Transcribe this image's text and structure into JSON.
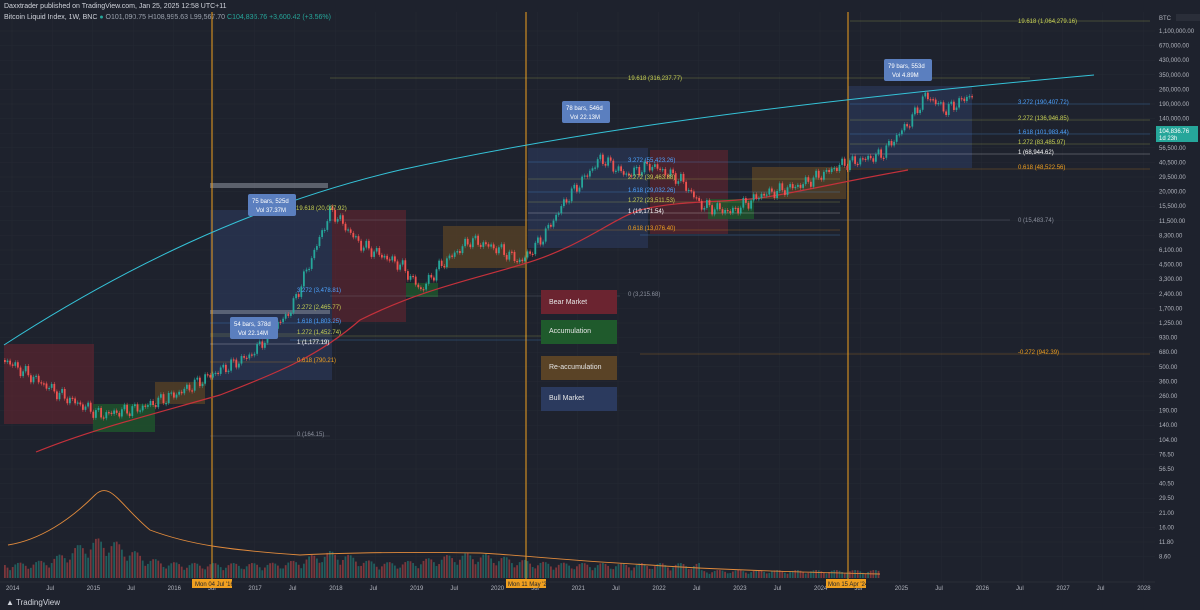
{
  "header": {
    "publisher": "Daxxtrader published on TradingView.com, Jan 25, 2025 12:58 UTC+11",
    "symbol": "Bitcoin Liquid Index, 1W, BNC",
    "o": "O101,090.75",
    "h": "H108,995.63",
    "l": "L99,567.70",
    "c": "C104,836.76",
    "chg": "+3,600.42 (+3.56%)"
  },
  "brand": "TradingView",
  "colors": {
    "bg": "#1e222d",
    "bear": "#6b2430",
    "accum": "#1f5a2c",
    "reaccum": "#5a4326",
    "bull": "#2b3a5e",
    "up": "#26a69a",
    "down": "#ef5350",
    "curve": "#35c3d8",
    "ma": "#c4313b",
    "vline": "#f0a020"
  },
  "price_axis": {
    "unit_label": "BTC",
    "ticks": [
      "1,100,000.00",
      "670,000.00",
      "430,000.00",
      "350,000.00",
      "260,000.00",
      "190,000.00",
      "140,000.00",
      "76,500.00",
      "56,500.00",
      "40,500.00",
      "29,500.00",
      "20,000.00",
      "15,500.00",
      "11,500.00",
      "8,300.00",
      "6,100.00",
      "4,500.00",
      "3,300.00",
      "2,400.00",
      "1,700.00",
      "1,250.00",
      "930.00",
      "680.00",
      "500.00",
      "360.00",
      "260.00",
      "190.00",
      "140.00",
      "104.00",
      "76.50",
      "56.50",
      "40.50",
      "29.50",
      "21.00",
      "16.00",
      "11.80",
      "8.60"
    ],
    "last_price": "104,836.76",
    "countdown": "1d 23h"
  },
  "time_axis": [
    "2014",
    "Jul",
    "2015",
    "Jul",
    "2016",
    "Jul",
    "2017",
    "Jul",
    "2018",
    "Jul",
    "2019",
    "Jul",
    "2020",
    "Jul",
    "2021",
    "Jul",
    "2022",
    "Jul",
    "2023",
    "Jul",
    "2024",
    "Jul",
    "2025",
    "Jul",
    "2026",
    "Jul",
    "2027",
    "Jul",
    "2028"
  ],
  "vline_labels": [
    "Mon 04 Jul '16",
    "Mon 11 May '20",
    "Mon 15 Apr '24"
  ],
  "callouts": [
    {
      "l1": "54 bars, 378d",
      "l2": "Vol 22.14M"
    },
    {
      "l1": "75 bars, 525d",
      "l2": "Vol 37.37M"
    },
    {
      "l1": "78 bars, 546d",
      "l2": "Vol 22.13M"
    },
    {
      "l1": "79 bars, 553d",
      "l2": "Vol 4.89M"
    }
  ],
  "fib_sets": [
    {
      "levels": [
        {
          "t": "1.618 (1,803.25)",
          "c": "#4da3ff"
        },
        {
          "t": "1.272 (1,452.74)",
          "c": "#c8d255"
        },
        {
          "t": "1 (1,177.19)",
          "c": "#ffffff"
        },
        {
          "t": "0.618 (790.21)",
          "c": "#f0a020"
        },
        {
          "t": "0 (164.15)",
          "c": "#8a8f9c"
        }
      ]
    },
    {
      "levels": [
        {
          "t": "19.618 (20,027.92)",
          "c": "#c8d255"
        },
        {
          "t": "3.272 (3,478.81)",
          "c": "#4da3ff"
        },
        {
          "t": "2.272 (2,465.77)",
          "c": "#c8d255"
        },
        {
          "t": "0 (3,215.68)",
          "c": "#8a8f9c"
        }
      ]
    },
    {
      "levels": [
        {
          "t": "19.618 (316,237.77)",
          "c": "#c8d255"
        },
        {
          "t": "3.272 (55,423.26)",
          "c": "#4da3ff"
        },
        {
          "t": "2.272 (39,463.88)",
          "c": "#c8d255"
        },
        {
          "t": "1.618 (29,032.26)",
          "c": "#4da3ff"
        },
        {
          "t": "1.272 (23,511.53)",
          "c": "#c8d255"
        },
        {
          "t": "1 (19,171.54)",
          "c": "#ffffff"
        },
        {
          "t": "0.618 (13,076.40)",
          "c": "#f0a020"
        },
        {
          "t": "0 (15,483.74)",
          "c": "#8a8f9c"
        }
      ]
    },
    {
      "levels": [
        {
          "t": "19.618 (1,064,279.16)",
          "c": "#c8d255"
        },
        {
          "t": "3.272 (190,407.72)",
          "c": "#4da3ff"
        },
        {
          "t": "2.272 (136,946.85)",
          "c": "#c8d255"
        },
        {
          "t": "1.618 (101,983.44)",
          "c": "#4da3ff"
        },
        {
          "t": "1.272 (83,485.97)",
          "c": "#c8d255"
        },
        {
          "t": "1 (68,944.62)",
          "c": "#ffffff"
        },
        {
          "t": "0.618 (48,522.56)",
          "c": "#f0a020"
        },
        {
          "t": "-0.272 (942.39)",
          "c": "#f0a020"
        }
      ]
    }
  ],
  "legend": [
    {
      "label": "Bear Market",
      "color": "#6b2430"
    },
    {
      "label": "Accumulation",
      "color": "#1f5a2c"
    },
    {
      "label": "Re-accumulation",
      "color": "#5a4326"
    },
    {
      "label": "Bull Market",
      "color": "#2b3a5e"
    }
  ]
}
